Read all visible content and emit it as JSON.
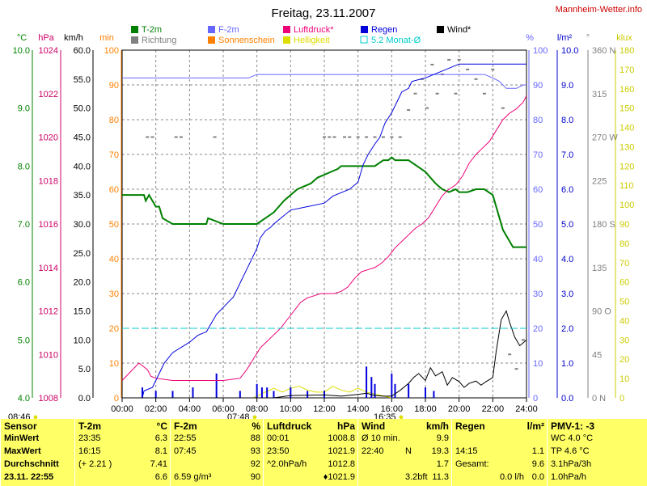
{
  "chart_data": {
    "type": "line",
    "title": "Freitag, 23.11.2007",
    "site": "Mannheim-Wetter.info",
    "x_ticks": [
      "00:00",
      "02:00",
      "04:00",
      "06:00",
      "08:00",
      "10:00",
      "12:00",
      "14:00",
      "16:00",
      "18:00",
      "20:00",
      "22:00",
      "24:00"
    ],
    "axes": [
      {
        "unit": "°C",
        "color": "#008000",
        "range": [
          4.0,
          10.0
        ],
        "ticks": [
          "4.0",
          "5.0",
          "6.0",
          "7.0",
          "8.0",
          "9.0",
          "10.0"
        ]
      },
      {
        "unit": "hPa",
        "color": "#cc0066",
        "range": [
          1008,
          1024
        ],
        "ticks": [
          "1008",
          "1010",
          "1012",
          "1014",
          "1016",
          "1018",
          "1020",
          "1022",
          "1024"
        ]
      },
      {
        "unit": "km/h",
        "color": "#000000",
        "range": [
          0,
          60
        ],
        "ticks": [
          "0.0",
          "5.0",
          "10.0",
          "15.0",
          "20.0",
          "25.0",
          "30.0",
          "35.0",
          "40.0",
          "45.0",
          "50.0",
          "55.0",
          "60.0"
        ]
      },
      {
        "unit": "min",
        "color": "#ff8000",
        "range": [
          0,
          100
        ],
        "ticks": [
          "0",
          "10",
          "20",
          "30",
          "40",
          "50",
          "60",
          "70",
          "80",
          "90",
          "100"
        ]
      },
      {
        "unit": "%",
        "color": "#6666ff",
        "range": [
          0,
          100
        ],
        "ticks": [
          "0",
          "10",
          "20",
          "30",
          "40",
          "50",
          "60",
          "70",
          "80",
          "90",
          "100"
        ]
      },
      {
        "unit": "l/m²",
        "color": "#0000cc",
        "range": [
          0,
          10
        ],
        "ticks": [
          "0.0",
          "1.0",
          "2.0",
          "3.0",
          "4.0",
          "5.0",
          "6.0",
          "7.0",
          "8.0",
          "9.0",
          "10.0"
        ]
      },
      {
        "unit": "°",
        "color": "#808080",
        "range": [
          0,
          360
        ],
        "ticks": [
          "0 N",
          "45",
          "90 O",
          "135",
          "180 S",
          "225",
          "270 W",
          "315",
          "360 N"
        ]
      },
      {
        "unit": "klux",
        "color": "#cccc00",
        "range": [
          0,
          180
        ],
        "ticks": [
          "0",
          "10",
          "20",
          "30",
          "40",
          "50",
          "60",
          "70",
          "80",
          "90",
          "100",
          "110",
          "120",
          "130",
          "140",
          "150",
          "160",
          "170",
          "180"
        ]
      }
    ],
    "legend": [
      {
        "name": "T-2m",
        "color": "#008000"
      },
      {
        "name": "F-2m",
        "color": "#6666ff"
      },
      {
        "name": "Luftdruck*",
        "color": "#ee0077"
      },
      {
        "name": "Regen",
        "color": "#0000dd"
      },
      {
        "name": "Wind*",
        "color": "#000000"
      },
      {
        "name": "Richtung",
        "color": "#808080"
      },
      {
        "name": "Sonnenschein",
        "color": "#ff8000"
      },
      {
        "name": "Helligkeit",
        "color": "#dddd00"
      },
      {
        "name": "5.2 Monat-Ø",
        "color": "#00cccc"
      }
    ],
    "series": [
      {
        "name": "T-2m",
        "axis": 0,
        "color": "#008000",
        "x": [
          0,
          1.3,
          1.4,
          1.6,
          1.8,
          2.0,
          2.2,
          2.4,
          3.0,
          4.0,
          5.0,
          5.1,
          6.0,
          7.0,
          8.0,
          8.5,
          9.0,
          9.3,
          9.6,
          10.0,
          10.4,
          10.8,
          11.2,
          11.6,
          12.0,
          12.4,
          12.8,
          13.0,
          13.5,
          14.0,
          15.0,
          15.5,
          15.8,
          16.0,
          16.2,
          16.5,
          17.0,
          17.5,
          18.0,
          18.3,
          18.6,
          19.0,
          19.4,
          19.8,
          20.0,
          20.5,
          21.0,
          21.5,
          22.0,
          22.3,
          22.6,
          23.0,
          23.2,
          23.4,
          23.6,
          24.0
        ],
        "y": [
          7.5,
          7.5,
          7.4,
          7.5,
          7.4,
          7.3,
          7.3,
          7.1,
          7.0,
          7.0,
          7.0,
          7.1,
          7.0,
          7.0,
          7.0,
          7.1,
          7.2,
          7.3,
          7.4,
          7.5,
          7.6,
          7.65,
          7.7,
          7.8,
          7.85,
          7.9,
          7.95,
          8.0,
          8.0,
          8.0,
          8.0,
          8.1,
          8.1,
          8.15,
          8.1,
          8.1,
          8.1,
          8.0,
          7.9,
          7.8,
          7.7,
          7.6,
          7.55,
          7.6,
          7.55,
          7.55,
          7.6,
          7.6,
          7.5,
          7.2,
          6.9,
          6.7,
          6.6,
          6.6,
          6.6,
          6.6
        ]
      },
      {
        "name": "F-2m",
        "axis": 4,
        "color": "#6666ff",
        "x": [
          0,
          6.0,
          6.5,
          7.0,
          7.5,
          8.0,
          9.0,
          10.0,
          11.0,
          12.0,
          13.0,
          14.0,
          15.0,
          16.0,
          17.0,
          18.0,
          19.0,
          20.0,
          21.0,
          21.5,
          22.0,
          22.4,
          22.8,
          23.0,
          23.4,
          23.8,
          24.0
        ],
        "y": [
          92,
          92,
          92,
          92,
          92,
          93,
          93,
          93,
          93,
          93,
          93,
          93,
          93,
          93,
          93,
          93,
          93,
          93,
          93,
          93,
          92,
          91,
          89,
          89,
          89,
          90,
          90
        ]
      },
      {
        "name": "Luftdruck*",
        "axis": 1,
        "color": "#ee0077",
        "x": [
          0,
          0.5,
          1.0,
          1.5,
          1.7,
          2.0,
          3.0,
          4.0,
          5.0,
          6.0,
          7.0,
          7.4,
          7.8,
          8.2,
          8.6,
          9.0,
          9.4,
          9.8,
          10.2,
          10.6,
          11.0,
          11.4,
          11.8,
          12.2,
          12.6,
          13.0,
          13.4,
          13.8,
          14.2,
          14.6,
          15.0,
          15.4,
          15.8,
          16.2,
          16.6,
          17.0,
          17.4,
          17.8,
          18.2,
          18.6,
          19.0,
          19.4,
          19.8,
          20.2,
          20.6,
          21.0,
          21.4,
          21.8,
          22.2,
          22.6,
          23.0,
          23.4,
          23.8,
          24.0
        ],
        "y": [
          1008.8,
          1009.2,
          1009.6,
          1009.3,
          1009.0,
          1008.9,
          1008.8,
          1008.8,
          1008.8,
          1008.8,
          1008.9,
          1009.3,
          1009.8,
          1010.3,
          1010.6,
          1010.9,
          1011.2,
          1011.6,
          1012.0,
          1012.4,
          1012.6,
          1012.7,
          1012.8,
          1012.8,
          1012.8,
          1012.9,
          1013.1,
          1013.5,
          1013.8,
          1013.9,
          1014.0,
          1014.2,
          1014.5,
          1014.9,
          1015.2,
          1015.5,
          1015.8,
          1016.0,
          1016.3,
          1016.8,
          1017.3,
          1017.6,
          1017.8,
          1018.2,
          1018.8,
          1019.2,
          1019.5,
          1019.8,
          1020.3,
          1020.8,
          1021.1,
          1021.3,
          1021.6,
          1021.9
        ]
      },
      {
        "name": "Regen",
        "axis": 5,
        "color": "#0000dd",
        "x": [
          0,
          1.2,
          1.3,
          1.8,
          2.0,
          2.5,
          3.0,
          4.0,
          4.5,
          5.0,
          5.6,
          6.0,
          6.6,
          7.0,
          7.3,
          7.6,
          8.0,
          8.2,
          8.5,
          8.8,
          9.0,
          9.5,
          10.0,
          11.0,
          12.0,
          12.5,
          13.5,
          14.0,
          14.3,
          14.6,
          15.0,
          15.3,
          15.6,
          16.0,
          16.3,
          16.6,
          17.0,
          17.2,
          18.0,
          18.5,
          19.0,
          20.0,
          21.0,
          22.0,
          23.0,
          24.0
        ],
        "y": [
          0,
          0,
          0.2,
          0.3,
          0.5,
          1.0,
          1.3,
          1.6,
          1.8,
          1.9,
          2.4,
          2.6,
          2.9,
          3.3,
          3.6,
          3.9,
          4.3,
          4.6,
          4.8,
          4.9,
          5.0,
          5.2,
          5.4,
          5.5,
          5.6,
          5.8,
          6.0,
          6.2,
          6.7,
          7.0,
          7.3,
          7.5,
          7.9,
          8.2,
          8.5,
          8.8,
          8.9,
          9.1,
          9.2,
          9.3,
          9.4,
          9.6,
          9.6,
          9.6,
          9.6,
          9.6
        ]
      },
      {
        "name": "Wind*",
        "axis": 2,
        "color": "#000000",
        "x": [
          0,
          9,
          10,
          12,
          13,
          14,
          14.5,
          15,
          15.5,
          16,
          16.5,
          17,
          17.3,
          17.6,
          18.0,
          18.3,
          18.6,
          19.0,
          19.3,
          19.6,
          20.0,
          20.3,
          20.6,
          21.0,
          21.3,
          21.6,
          22.0,
          22.2,
          22.5,
          22.8,
          23.0,
          23.3,
          23.6,
          24.0
        ],
        "y": [
          0,
          0,
          0.4,
          0.5,
          0.3,
          0.6,
          0.8,
          0.4,
          0.3,
          0.3,
          1.3,
          2.5,
          3.5,
          4.2,
          3.0,
          5.2,
          3.8,
          4.5,
          2.2,
          3.5,
          2.8,
          1.8,
          2.5,
          2.9,
          2.2,
          2.8,
          3.5,
          8.0,
          13.5,
          15.0,
          13.0,
          10.5,
          9.0,
          10.0
        ]
      },
      {
        "name": "5.2 Monat-Ø",
        "axis": 0,
        "color": "#00cccc",
        "x": [
          0,
          24
        ],
        "y": [
          5.2,
          5.2
        ],
        "dashed": true
      }
    ],
    "richtung": {
      "axis": 6,
      "x": [
        1.5,
        1.8,
        3.2,
        3.5,
        5.5,
        12.0,
        12.3,
        12.6,
        13.2,
        13.5,
        14.0,
        14.5,
        15.0,
        15.5,
        16.0,
        16.5,
        17.0,
        17.4,
        17.8,
        18.1,
        18.4,
        18.7,
        19.0,
        19.4,
        19.8,
        20.0,
        20.5,
        21.0,
        21.5,
        22.0,
        22.6,
        23.0,
        23.4,
        23.8
      ],
      "y": [
        270,
        270,
        270,
        270,
        270,
        270,
        270,
        270,
        270,
        270,
        270,
        270,
        270,
        270,
        270,
        270,
        298,
        315,
        330,
        300,
        345,
        315,
        335,
        350,
        315,
        350,
        340,
        330,
        315,
        340,
        300,
        45,
        30,
        60
      ]
    },
    "rain_bars": {
      "axis": 5,
      "x": [
        1.2,
        2.0,
        3.0,
        4.2,
        5.6,
        7.0,
        8.0,
        8.3,
        8.6,
        9.0,
        10.0,
        11.0,
        12.0,
        14.5,
        14.8,
        15.0,
        16.0,
        16.2,
        17.0,
        18.0,
        18.5
      ],
      "y": [
        0.3,
        0.2,
        0.2,
        0.3,
        0.7,
        0.2,
        0.4,
        0.3,
        0.3,
        0.2,
        0.3,
        0.2,
        0.2,
        0.9,
        0.6,
        0.4,
        0.7,
        0.4,
        0.4,
        0.3,
        0.2
      ]
    },
    "helligkeit": {
      "axis": 7,
      "x": [
        7.8,
        8.5,
        9.0,
        9.5,
        10.0,
        10.5,
        11.0,
        11.5,
        12.0,
        12.5,
        13.0,
        13.5,
        14.0,
        14.5,
        15.0,
        15.5,
        16.0
      ],
      "y": [
        0,
        3,
        5,
        3,
        5,
        6,
        4,
        3,
        3,
        6,
        4,
        3,
        5,
        3,
        2,
        1,
        0
      ]
    },
    "sun_markers": {
      "sunrise": "08:46",
      "sunset": "16:35",
      "midday": "07:48"
    }
  },
  "stats": {
    "cols": [
      {
        "header": [
          "Sensor",
          "",
          ""
        ],
        "rows": [
          [
            "MinWert",
            "",
            ""
          ],
          [
            "MaxWert",
            "",
            ""
          ],
          [
            "Durchschnitt",
            "",
            ""
          ],
          [
            "23.11.  22:55",
            "",
            ""
          ]
        ]
      },
      {
        "header": [
          "T-2m",
          "",
          "°C"
        ],
        "rows": [
          [
            "23:35",
            "",
            "6.3"
          ],
          [
            "16:15",
            "",
            "8.1"
          ],
          [
            "(+ 2.21 )",
            "",
            "7.41"
          ],
          [
            "",
            "",
            "6.6"
          ]
        ]
      },
      {
        "header": [
          "F-2m",
          "",
          "%"
        ],
        "rows": [
          [
            "22:55",
            "",
            "88"
          ],
          [
            "07:45",
            "",
            "93"
          ],
          [
            "",
            "",
            "92"
          ],
          [
            "6.59 g/m³",
            "",
            "90"
          ]
        ]
      },
      {
        "header": [
          "Luftdruck",
          "",
          "hPa"
        ],
        "rows": [
          [
            "00:01",
            "",
            "1008.8"
          ],
          [
            "23:50",
            "",
            "1021.9"
          ],
          [
            "^2.0hPa/h",
            "",
            "1012.8"
          ],
          [
            "",
            "",
            "♦1021.9"
          ]
        ]
      },
      {
        "header": [
          "Wind",
          "",
          "km/h"
        ],
        "rows": [
          [
            "Ø 10 min.",
            "",
            "9.9"
          ],
          [
            "22:40",
            "N",
            "19.3"
          ],
          [
            "",
            "",
            "1.7"
          ],
          [
            "",
            "3.2bft",
            "11.3"
          ]
        ]
      },
      {
        "header": [
          "Regen",
          "",
          "l/m²"
        ],
        "rows": [
          [
            "",
            "",
            ""
          ],
          [
            "14:15",
            "",
            "1.1"
          ],
          [
            "Gesamt:",
            "",
            "9.6"
          ],
          [
            "",
            "0.0 l/h",
            "0.0"
          ]
        ]
      },
      {
        "header": [
          "PMV-1: -3",
          "",
          ""
        ],
        "rows": [
          [
            "WC 4.0 °C",
            "",
            ""
          ],
          [
            "TP 4.6 °C",
            "",
            ""
          ],
          [
            "3.1hPa/3h",
            "",
            ""
          ],
          [
            "1.0hPa/h",
            "",
            ""
          ]
        ]
      }
    ]
  }
}
